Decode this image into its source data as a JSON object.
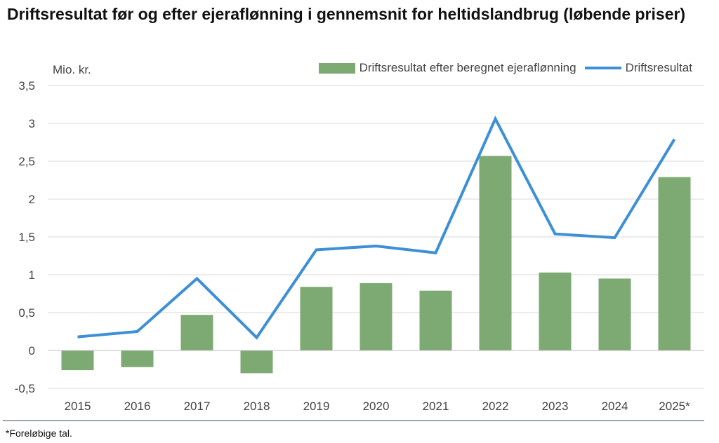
{
  "title": "Driftsresultat før og efter ejeraflønning i gennemsnit for heltidslandbrug (løbende priser)",
  "footnote": "*Foreløbige tal.",
  "chart_data": {
    "type": "bar",
    "title": "Driftsresultat før og efter ejeraflønning i gennemsnit for heltidslandbrug (løbende priser)",
    "ylabel": "Mio. kr.",
    "xlabel": "",
    "categories": [
      "2015",
      "2016",
      "2017",
      "2018",
      "2019",
      "2020",
      "2021",
      "2022",
      "2023",
      "2024",
      "2025*"
    ],
    "ylim": [
      -0.5,
      3.5
    ],
    "yticks": [
      -0.5,
      0,
      0.5,
      1,
      1.5,
      2,
      2.5,
      3,
      3.5
    ],
    "ytick_labels": [
      "-0,5",
      "0",
      "0,5",
      "1",
      "1,5",
      "2",
      "2,5",
      "3",
      "3,5"
    ],
    "grid": true,
    "legend_position": "top-right",
    "series": [
      {
        "name": "Driftsresultat efter beregnet ejeraflønning",
        "kind": "bar",
        "color": "#7daa72",
        "values": [
          -0.26,
          -0.22,
          0.47,
          -0.3,
          0.84,
          0.89,
          0.79,
          2.57,
          1.03,
          0.95,
          2.29
        ]
      },
      {
        "name": "Driftsresultat",
        "kind": "line",
        "color": "#3d8fd6",
        "values": [
          0.18,
          0.25,
          0.95,
          0.17,
          1.33,
          1.38,
          1.29,
          3.06,
          1.54,
          1.49,
          2.79
        ]
      }
    ]
  }
}
